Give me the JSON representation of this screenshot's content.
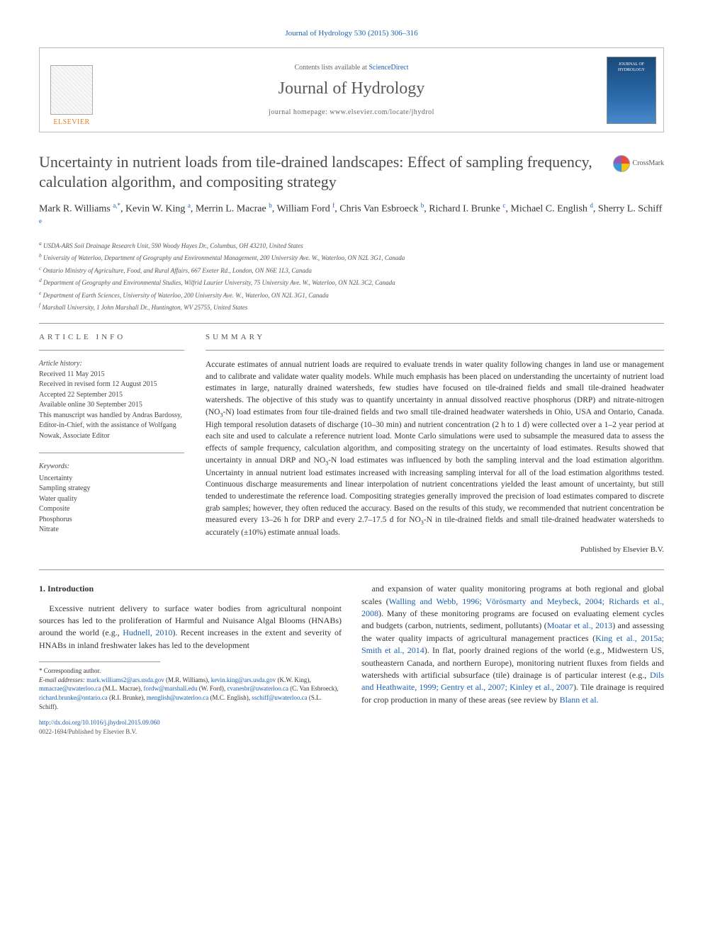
{
  "citation": "Journal of Hydrology 530 (2015) 306–316",
  "header": {
    "contents_prefix": "Contents lists available at ",
    "contents_link": "ScienceDirect",
    "journal_name": "Journal of Hydrology",
    "homepage_prefix": "journal homepage: ",
    "homepage_url": "www.elsevier.com/locate/jhydrol",
    "publisher": "ELSEVIER"
  },
  "title": "Uncertainty in nutrient loads from tile-drained landscapes: Effect of sampling frequency, calculation algorithm, and compositing strategy",
  "crossmark": "CrossMark",
  "authors_html": "Mark R. Williams <span class='sup'>a,*</span>, Kevin W. King <span class='sup'>a</span>, Merrin L. Macrae <span class='sup'>b</span>, William Ford <span class='sup'>f</span>, Chris Van Esbroeck <span class='sup'>b</span>, Richard I. Brunke <span class='sup'>c</span>, Michael C. English <span class='sup'>d</span>, Sherry L. Schiff <span class='sup'>e</span>",
  "affiliations": [
    "a USDA-ARS Soil Drainage Research Unit, 590 Woody Hayes Dr., Columbus, OH 43210, United States",
    "b University of Waterloo, Department of Geography and Environmental Management, 200 University Ave. W., Waterloo, ON N2L 3G1, Canada",
    "c Ontario Ministry of Agriculture, Food, and Rural Affairs, 667 Exeter Rd., London, ON N6E 1L3, Canada",
    "d Department of Geography and Environmental Studies, Wilfrid Laurier University, 75 University Ave. W., Waterloo, ON N2L 3C2, Canada",
    "e Department of Earth Sciences, University of Waterloo, 200 University Ave. W., Waterloo, ON N2L 3G1, Canada",
    "f Marshall University, 1 John Marshall Dr., Huntington, WV 25755, United States"
  ],
  "article_info": {
    "label": "ARTICLE INFO",
    "history_label": "Article history:",
    "history": [
      "Received 11 May 2015",
      "Received in revised form 12 August 2015",
      "Accepted 22 September 2015",
      "Available online 30 September 2015",
      "This manuscript was handled by Andras Bardossy, Editor-in-Chief, with the assistance of Wolfgang Nowak, Associate Editor"
    ],
    "keywords_label": "Keywords:",
    "keywords": [
      "Uncertainty",
      "Sampling strategy",
      "Water quality",
      "Composite",
      "Phosphorus",
      "Nitrate"
    ]
  },
  "summary": {
    "label": "SUMMARY",
    "text": "Accurate estimates of annual nutrient loads are required to evaluate trends in water quality following changes in land use or management and to calibrate and validate water quality models. While much emphasis has been placed on understanding the uncertainty of nutrient load estimates in large, naturally drained watersheds, few studies have focused on tile-drained fields and small tile-drained headwater watersheds. The objective of this study was to quantify uncertainty in annual dissolved reactive phosphorus (DRP) and nitrate-nitrogen (NO3-N) load estimates from four tile-drained fields and two small tile-drained headwater watersheds in Ohio, USA and Ontario, Canada. High temporal resolution datasets of discharge (10–30 min) and nutrient concentration (2 h to 1 d) were collected over a 1–2 year period at each site and used to calculate a reference nutrient load. Monte Carlo simulations were used to subsample the measured data to assess the effects of sample frequency, calculation algorithm, and compositing strategy on the uncertainty of load estimates. Results showed that uncertainty in annual DRP and NO3-N load estimates was influenced by both the sampling interval and the load estimation algorithm. Uncertainty in annual nutrient load estimates increased with increasing sampling interval for all of the load estimation algorithms tested. Continuous discharge measurements and linear interpolation of nutrient concentrations yielded the least amount of uncertainty, but still tended to underestimate the reference load. Compositing strategies generally improved the precision of load estimates compared to discrete grab samples; however, they often reduced the accuracy. Based on the results of this study, we recommended that nutrient concentration be measured every 13–26 h for DRP and every 2.7–17.5 d for NO3-N in tile-drained fields and small tile-drained headwater watersheds to accurately (±10%) estimate annual loads.",
    "publisher_line": "Published by Elsevier B.V."
  },
  "intro": {
    "heading": "1. Introduction",
    "col1": "Excessive nutrient delivery to surface water bodies from agricultural nonpoint sources has led to the proliferation of Harmful and Nuisance Algal Blooms (HNABs) around the world (e.g., Hudnell, 2010). Recent increases in the extent and severity of HNABs in inland freshwater lakes has led to the development",
    "col2": "and expansion of water quality monitoring programs at both regional and global scales (Walling and Webb, 1996; Vörösmarty and Meybeck, 2004; Richards et al., 2008). Many of these monitoring programs are focused on evaluating element cycles and budgets (carbon, nutrients, sediment, pollutants) (Moatar et al., 2013) and assessing the water quality impacts of agricultural management practices (King et al., 2015a; Smith et al., 2014). In flat, poorly drained regions of the world (e.g., Midwestern US, southeastern Canada, and northern Europe), monitoring nutrient fluxes from fields and watersheds with artificial subsurface (tile) drainage is of particular interest (e.g., Dils and Heathwaite, 1999; Gentry et al., 2007; Kinley et al., 2007). Tile drainage is required for crop production in many of these areas (see review by Blann et al."
  },
  "footnotes": {
    "corr": "* Corresponding author.",
    "emails_label": "E-mail addresses:",
    "emails": "mark.williams2@ars.usda.gov (M.R. Williams), kevin.king@ars.usda.gov (K.W. King), mmacrae@uwaterloo.ca (M.L. Macrae), fordw@marshall.edu (W. Ford), cvanesbr@uwaterloo.ca (C. Van Esbroeck), richard.brunke@ontario.ca (R.I. Brunke), menglish@uwaterloo.ca (M.C. English), sschiff@uwaterloo.ca (S.L. Schiff)."
  },
  "doi": "http://dx.doi.org/10.1016/j.jhydrol.2015.09.060",
  "issn_line": "0022-1694/Published by Elsevier B.V.",
  "colors": {
    "link": "#1a5fb4",
    "publisher_orange": "#e67e22",
    "text": "#333333",
    "rule": "#999999"
  }
}
